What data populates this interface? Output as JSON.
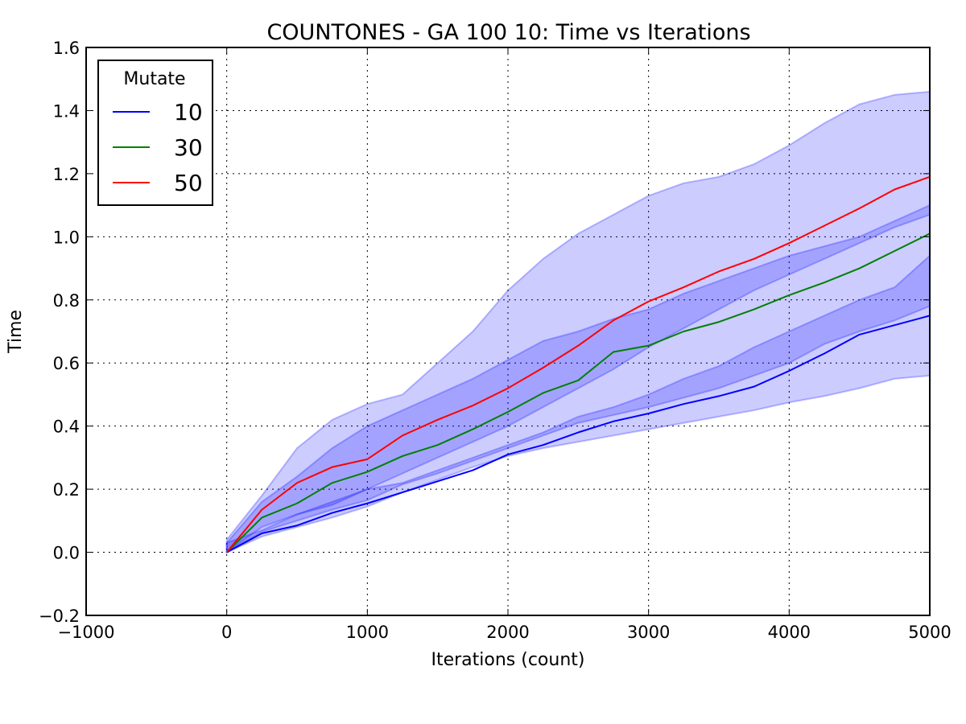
{
  "chart_data": {
    "type": "line",
    "title": "COUNTONES - GA 100 10: Time vs Iterations",
    "xlabel": "Iterations (count)",
    "ylabel": "Time",
    "xlim": [
      -1000,
      5000
    ],
    "ylim": [
      -0.2,
      1.6
    ],
    "x_ticks": [
      -1000,
      0,
      1000,
      2000,
      3000,
      4000,
      5000
    ],
    "y_ticks": [
      -0.2,
      0.0,
      0.2,
      0.4,
      0.6,
      0.8,
      1.0,
      1.2,
      1.4,
      1.6
    ],
    "x_tick_labels": [
      "−1000",
      "0",
      "1000",
      "2000",
      "3000",
      "4000",
      "5000"
    ],
    "y_tick_labels": [
      "−0.2",
      "0.0",
      "0.2",
      "0.4",
      "0.6",
      "0.8",
      "1.0",
      "1.2",
      "1.4",
      "1.6"
    ],
    "grid": true,
    "legend": {
      "title": "Mutate",
      "position": "top-left"
    },
    "band_color": "#0000ff",
    "x": [
      0,
      250,
      500,
      750,
      1000,
      1250,
      1500,
      1750,
      2000,
      2250,
      2500,
      2750,
      3000,
      3250,
      3500,
      3750,
      4000,
      4250,
      4500,
      4750,
      5000
    ],
    "series": [
      {
        "name": "10",
        "color": "#0000ff",
        "values": [
          0.0,
          0.06,
          0.085,
          0.125,
          0.155,
          0.19,
          0.225,
          0.26,
          0.31,
          0.34,
          0.38,
          0.415,
          0.44,
          0.47,
          0.495,
          0.525,
          0.575,
          0.63,
          0.69,
          0.72,
          0.75
        ],
        "band_lower": [
          0.0,
          0.05,
          0.08,
          0.11,
          0.145,
          0.19,
          0.23,
          0.27,
          0.305,
          0.33,
          0.35,
          0.37,
          0.39,
          0.41,
          0.43,
          0.45,
          0.475,
          0.495,
          0.52,
          0.55,
          0.56
        ],
        "band_upper": [
          0.03,
          0.07,
          0.12,
          0.16,
          0.2,
          0.22,
          0.26,
          0.3,
          0.34,
          0.38,
          0.43,
          0.46,
          0.5,
          0.55,
          0.59,
          0.65,
          0.7,
          0.75,
          0.8,
          0.84,
          0.94
        ]
      },
      {
        "name": "30",
        "color": "#008000",
        "values": [
          0.0,
          0.11,
          0.155,
          0.22,
          0.255,
          0.305,
          0.34,
          0.39,
          0.445,
          0.505,
          0.545,
          0.635,
          0.655,
          0.7,
          0.73,
          0.77,
          0.815,
          0.855,
          0.9,
          0.955,
          1.01
        ],
        "band_lower": [
          0.0,
          0.065,
          0.1,
          0.135,
          0.165,
          0.215,
          0.25,
          0.29,
          0.33,
          0.37,
          0.41,
          0.435,
          0.46,
          0.49,
          0.52,
          0.56,
          0.6,
          0.66,
          0.7,
          0.735,
          0.78
        ],
        "band_upper": [
          0.03,
          0.16,
          0.24,
          0.33,
          0.4,
          0.45,
          0.5,
          0.55,
          0.61,
          0.67,
          0.7,
          0.74,
          0.77,
          0.82,
          0.86,
          0.9,
          0.94,
          0.97,
          1.0,
          1.05,
          1.1
        ]
      },
      {
        "name": "50",
        "color": "#ff0000",
        "values": [
          0.0,
          0.135,
          0.22,
          0.27,
          0.295,
          0.37,
          0.42,
          0.465,
          0.52,
          0.585,
          0.655,
          0.735,
          0.795,
          0.84,
          0.89,
          0.93,
          0.98,
          1.035,
          1.09,
          1.15,
          1.19
        ],
        "band_lower": [
          0.0,
          0.08,
          0.12,
          0.15,
          0.2,
          0.25,
          0.3,
          0.35,
          0.4,
          0.46,
          0.52,
          0.58,
          0.65,
          0.71,
          0.77,
          0.83,
          0.88,
          0.93,
          0.98,
          1.03,
          1.07
        ],
        "band_upper": [
          0.04,
          0.18,
          0.33,
          0.42,
          0.47,
          0.5,
          0.6,
          0.7,
          0.83,
          0.93,
          1.01,
          1.07,
          1.13,
          1.17,
          1.19,
          1.23,
          1.29,
          1.36,
          1.42,
          1.45,
          1.46
        ]
      }
    ]
  }
}
